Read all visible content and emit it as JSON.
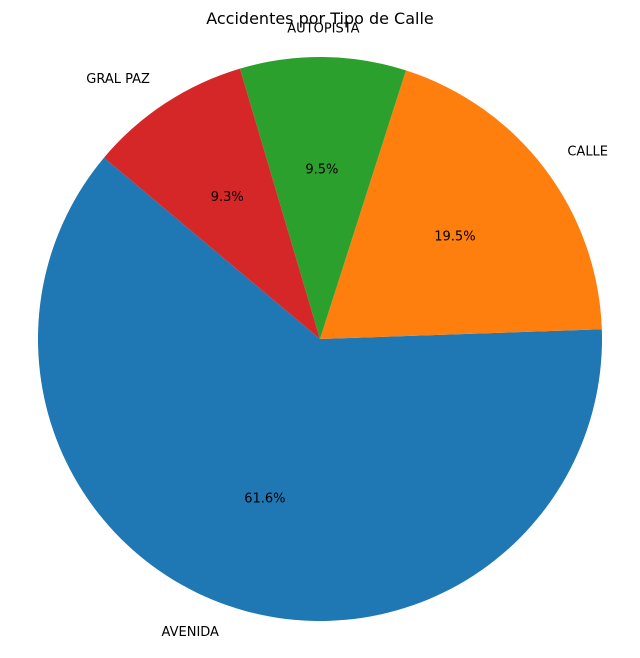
{
  "chart_data": {
    "type": "pie",
    "title": "Accidentes por Tipo de Calle",
    "categories": [
      "AVENIDA",
      "CALLE",
      "AUTOPISTA",
      "GRAL PAZ"
    ],
    "values": [
      61.6,
      19.5,
      9.5,
      9.3
    ],
    "value_labels": [
      "61.6%",
      "19.5%",
      "9.5%",
      "9.3%"
    ],
    "colors": [
      "#1f77b4",
      "#ff7f0e",
      "#2ca02c",
      "#d62728"
    ],
    "start_angle_deg": 140,
    "direction": "counterclockwise"
  }
}
